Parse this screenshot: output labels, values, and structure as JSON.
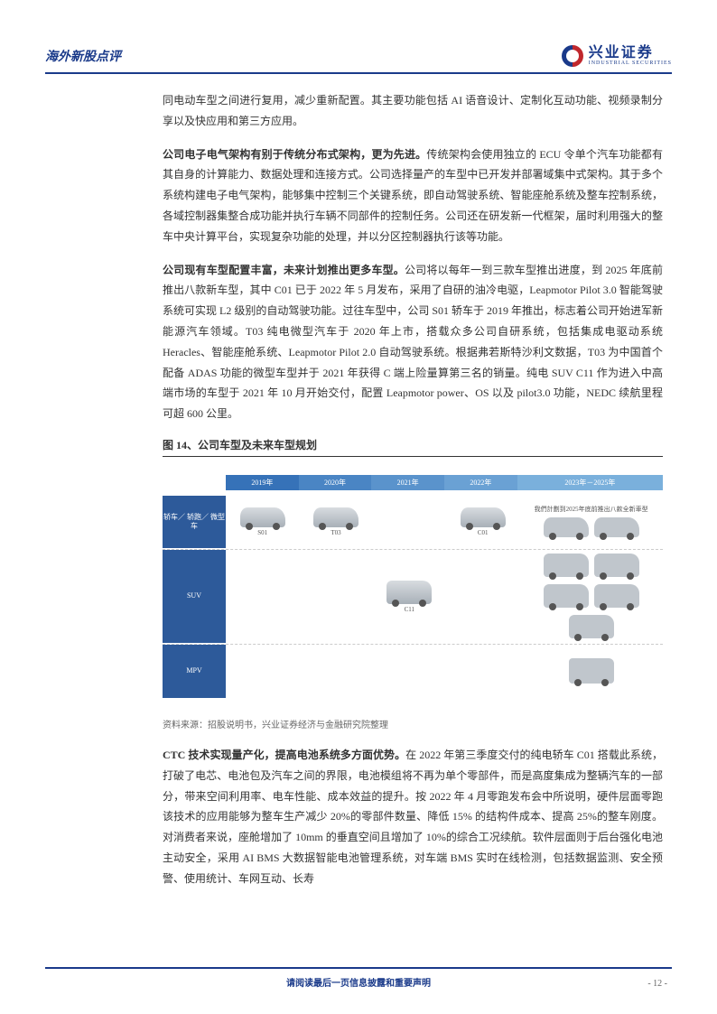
{
  "header": {
    "title": "海外新股点评",
    "logo_cn": "兴业证券",
    "logo_en": "INDUSTRIAL SECURITIES"
  },
  "paragraphs": {
    "p1": "同电动车型之间进行复用，减少重新配置。其主要功能包括 AI 语音设计、定制化互动功能、视频录制分享以及快应用和第三方应用。",
    "p2_lead": "公司电子电气架构有别于传统分布式架构，更为先进。",
    "p2_body": "传统架构会使用独立的 ECU 令单个汽车功能都有其自身的计算能力、数据处理和连接方式。公司选择量产的车型中已开发并部署域集中式架构。其于多个系统构建电子电气架构，能够集中控制三个关键系统，即自动驾驶系统、智能座舱系统及整车控制系统，各域控制器集整合成功能并执行车辆不同部件的控制任务。公司还在研发新一代框架，届时利用强大的整车中央计算平台，实现复杂功能的处理，并以分区控制器执行该等功能。",
    "p3_lead": "公司现有车型配置丰富，未来计划推出更多车型。",
    "p3_body": "公司将以每年一到三款车型推出进度，到 2025 年底前推出八款新车型，其中 C01 已于 2022 年 5 月发布，采用了自研的油冷电驱，Leapmotor Pilot 3.0 智能驾驶系统可实现 L2 级别的自动驾驶功能。过往车型中，公司 S01 轿车于 2019 年推出，标志着公司开始进军新能源汽车领域。T03 纯电微型汽车于 2020 年上市，搭载众多公司自研系统，包括集成电驱动系统 Heracles、智能座舱系统、Leapmotor Pilot 2.0 自动驾驶系统。根据弗若斯特沙利文数据，T03 为中国首个配备 ADAS 功能的微型车型并于 2021 年获得 C 端上险量算第三名的销量。纯电 SUV C11 作为进入中高端市场的车型于 2021 年 10 月开始交付，配置 Leapmotor power、OS 以及 pilot3.0 功能，NEDC 续航里程可超 600 公里。",
    "p4_lead": "CTC 技术实现量产化，提高电池系统多方面优势。",
    "p4_body": "在 2022 年第三季度交付的纯电轿车 C01 搭载此系统，打破了电芯、电池包及汽车之间的界限，电池模组将不再为单个零部件，而是高度集成为整辆汽车的一部分，带来空间利用率、电车性能、成本效益的提升。按 2022 年 4 月零跑发布会中所说明，硬件层面零跑该技术的应用能够为整车生产减少 20%的零部件数量、降低 15% 的结构件成本、提高 25%的整车刚度。对消费者来说，座舱增加了 10mm 的垂直空间且增加了 10%的综合工况续航。软件层面则于后台强化电池主动安全，采用 AI BMS 大数据智能电池管理系统，对车端 BMS 实时在线检测，包括数据监测、安全预警、使用统计、车网互动、长寿"
  },
  "figure": {
    "title": "图 14、公司车型及未来车型规划",
    "timeline": [
      "2019年",
      "2020年",
      "2021年",
      "2022年",
      "2023年－2025年"
    ],
    "rows": {
      "r1": "轿车／\n轿跑／\n微型车",
      "r2": "SUV",
      "r3": "MPV"
    },
    "note": "我們計劃到2025年底前推出八款全新車型",
    "models": {
      "s01": "S01",
      "t03": "T03",
      "c01": "C01",
      "c11": "C11"
    },
    "source": "资料来源：招股说明书，兴业证券经济与金融研究院整理"
  },
  "footer": {
    "disclaimer": "请阅读最后一页信息披露和重要声明",
    "page": "- 12 -"
  },
  "colors": {
    "brand_blue": "#1a3a8a",
    "brand_red": "#c0282d"
  }
}
